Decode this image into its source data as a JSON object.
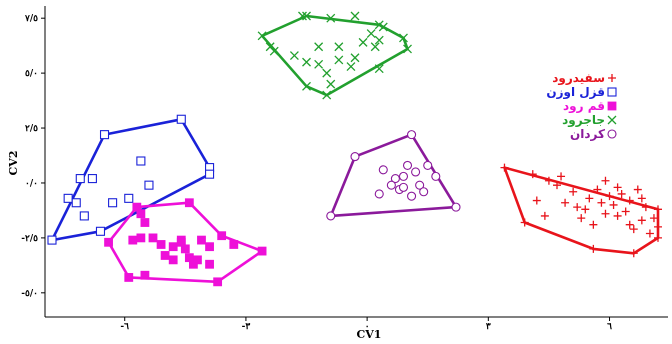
{
  "chart_data": {
    "type": "scatter",
    "xlabel": "CV1",
    "ylabel": "CV2",
    "xlim": [
      -7.8,
      7.2
    ],
    "ylim": [
      -5.6,
      7.6
    ],
    "xticks": [
      {
        "value": -6,
        "label": "-٦"
      },
      {
        "value": -3,
        "label": "-٣"
      },
      {
        "value": 0,
        "label": "٠"
      },
      {
        "value": 3,
        "label": "٣"
      },
      {
        "value": 6,
        "label": "٦"
      }
    ],
    "yticks": [
      {
        "value": 7.5,
        "label": "٧/٥"
      },
      {
        "value": 5,
        "label": "٥/٠"
      },
      {
        "value": 2.5,
        "label": "٢/٥"
      },
      {
        "value": 0,
        "label": "٠/٠"
      },
      {
        "value": -2.5,
        "label": "-٢/٥"
      },
      {
        "value": -5,
        "label": "-٥/٠"
      }
    ],
    "legend_position": "right",
    "series": [
      {
        "name": "سفیدرود",
        "marker": "plus",
        "color": "#e8141b",
        "hull": [
          [
            3.4,
            0.7
          ],
          [
            7.2,
            -1.2
          ],
          [
            7.2,
            -2.5
          ],
          [
            6.6,
            -3.2
          ],
          [
            5.6,
            -3.0
          ],
          [
            3.9,
            -1.8
          ]
        ],
        "points": [
          [
            3.4,
            0.7
          ],
          [
            3.9,
            -1.8
          ],
          [
            4.1,
            0.4
          ],
          [
            4.2,
            -0.8
          ],
          [
            4.4,
            -1.5
          ],
          [
            4.5,
            0.1
          ],
          [
            4.7,
            -0.1
          ],
          [
            4.8,
            0.3
          ],
          [
            4.9,
            -0.9
          ],
          [
            5.1,
            -0.4
          ],
          [
            5.2,
            -1.1
          ],
          [
            5.3,
            -1.6
          ],
          [
            5.5,
            -0.7
          ],
          [
            5.6,
            -1.9
          ],
          [
            5.7,
            -0.3
          ],
          [
            5.8,
            -0.9
          ],
          [
            5.9,
            -1.4
          ],
          [
            5.9,
            0.1
          ],
          [
            6.0,
            -0.6
          ],
          [
            6.1,
            -1.0
          ],
          [
            6.2,
            -0.2
          ],
          [
            6.3,
            -0.5
          ],
          [
            6.4,
            -1.3
          ],
          [
            6.5,
            -0.8
          ],
          [
            6.6,
            -2.1
          ],
          [
            6.7,
            -0.3
          ],
          [
            6.8,
            -1.7
          ],
          [
            6.9,
            -1.1
          ],
          [
            7.0,
            -2.3
          ],
          [
            7.1,
            -1.6
          ],
          [
            7.2,
            -2.0
          ],
          [
            6.5,
            -1.9
          ],
          [
            6.2,
            -1.5
          ],
          [
            5.4,
            -1.2
          ],
          [
            6.8,
            -0.7
          ],
          [
            5.6,
            -3.0
          ],
          [
            6.6,
            -3.2
          ],
          [
            7.2,
            -1.2
          ],
          [
            7.2,
            -2.5
          ]
        ]
      },
      {
        "name": "قزل اوزن",
        "marker": "square-open",
        "color": "#1a22d8",
        "hull": [
          [
            -7.8,
            -2.6
          ],
          [
            -6.5,
            2.2
          ],
          [
            -4.6,
            2.9
          ],
          [
            -3.9,
            0.7
          ],
          [
            -3.9,
            0.4
          ],
          [
            -6.6,
            -2.2
          ]
        ],
        "points": [
          [
            -7.8,
            -2.6
          ],
          [
            -6.5,
            2.2
          ],
          [
            -4.6,
            2.9
          ],
          [
            -3.9,
            0.7
          ],
          [
            -3.9,
            0.4
          ],
          [
            -6.6,
            -2.2
          ],
          [
            -7.1,
            0.2
          ],
          [
            -7.4,
            -0.7
          ],
          [
            -7.2,
            -0.9
          ],
          [
            -6.8,
            0.2
          ],
          [
            -7.0,
            -1.5
          ],
          [
            -6.3,
            -0.9
          ],
          [
            -5.9,
            -0.7
          ],
          [
            -5.6,
            1.0
          ],
          [
            -5.4,
            -0.1
          ]
        ]
      },
      {
        "name": "قم رود",
        "marker": "square-filled",
        "color": "#ee10d8",
        "hull": [
          [
            -5.7,
            -1.1
          ],
          [
            -4.4,
            -0.9
          ],
          [
            -3.6,
            -2.4
          ],
          [
            -2.6,
            -3.1
          ],
          [
            -3.7,
            -4.5
          ],
          [
            -5.9,
            -4.3
          ],
          [
            -6.4,
            -2.7
          ]
        ],
        "points": [
          [
            -5.7,
            -1.1
          ],
          [
            -4.4,
            -0.9
          ],
          [
            -3.6,
            -2.4
          ],
          [
            -2.6,
            -3.1
          ],
          [
            -3.7,
            -4.5
          ],
          [
            -5.9,
            -4.3
          ],
          [
            -6.4,
            -2.7
          ],
          [
            -5.6,
            -1.4
          ],
          [
            -5.5,
            -1.8
          ],
          [
            -5.8,
            -2.6
          ],
          [
            -5.6,
            -2.5
          ],
          [
            -5.3,
            -2.5
          ],
          [
            -5.1,
            -2.8
          ],
          [
            -5.0,
            -3.3
          ],
          [
            -4.8,
            -2.9
          ],
          [
            -4.6,
            -2.6
          ],
          [
            -4.6,
            -2.7
          ],
          [
            -4.5,
            -3.0
          ],
          [
            -4.8,
            -3.5
          ],
          [
            -4.4,
            -3.4
          ],
          [
            -4.2,
            -3.5
          ],
          [
            -4.3,
            -3.7
          ],
          [
            -4.1,
            -2.6
          ],
          [
            -3.9,
            -2.9
          ],
          [
            -3.9,
            -3.7
          ],
          [
            -3.3,
            -2.8
          ],
          [
            -5.5,
            -4.2
          ]
        ]
      },
      {
        "name": "جاجرود",
        "marker": "x",
        "color": "#22a02e",
        "hull": [
          [
            -2.6,
            6.7
          ],
          [
            -1.5,
            7.6
          ],
          [
            0.3,
            7.2
          ],
          [
            0.9,
            6.6
          ],
          [
            1.0,
            6.1
          ],
          [
            -1.0,
            4.0
          ],
          [
            -1.5,
            4.4
          ]
        ],
        "points": [
          [
            -2.6,
            6.7
          ],
          [
            -1.5,
            7.6
          ],
          [
            0.3,
            7.2
          ],
          [
            0.9,
            6.6
          ],
          [
            1.0,
            6.1
          ],
          [
            -1.0,
            4.0
          ],
          [
            -1.5,
            4.4
          ],
          [
            -1.6,
            7.6
          ],
          [
            -0.9,
            7.5
          ],
          [
            -0.3,
            7.6
          ],
          [
            -2.4,
            6.2
          ],
          [
            -2.3,
            6.0
          ],
          [
            -1.8,
            5.8
          ],
          [
            -1.5,
            5.5
          ],
          [
            -1.2,
            6.2
          ],
          [
            -1.2,
            5.4
          ],
          [
            -1.0,
            5.0
          ],
          [
            -0.9,
            4.5
          ],
          [
            -0.7,
            5.6
          ],
          [
            -0.7,
            6.2
          ],
          [
            -0.4,
            5.3
          ],
          [
            -0.3,
            5.7
          ],
          [
            -0.1,
            6.4
          ],
          [
            0.1,
            6.8
          ],
          [
            0.2,
            6.2
          ],
          [
            0.3,
            6.5
          ],
          [
            0.4,
            7.1
          ],
          [
            0.3,
            5.2
          ]
        ]
      },
      {
        "name": "کردان",
        "marker": "circle-open",
        "color": "#8b1a9b",
        "hull": [
          [
            -0.9,
            -1.5
          ],
          [
            -0.3,
            1.2
          ],
          [
            1.1,
            2.2
          ],
          [
            2.2,
            -1.1
          ]
        ],
        "points": [
          [
            -0.9,
            -1.5
          ],
          [
            -0.3,
            1.2
          ],
          [
            1.1,
            2.2
          ],
          [
            2.2,
            -1.1
          ],
          [
            0.4,
            0.6
          ],
          [
            0.7,
            0.2
          ],
          [
            0.9,
            0.3
          ],
          [
            1.0,
            0.8
          ],
          [
            1.2,
            0.5
          ],
          [
            1.5,
            0.8
          ],
          [
            1.7,
            0.3
          ],
          [
            1.3,
            -0.1
          ],
          [
            0.8,
            -0.3
          ],
          [
            0.6,
            -0.1
          ],
          [
            1.1,
            -0.6
          ],
          [
            0.3,
            -0.5
          ],
          [
            1.4,
            -0.4
          ],
          [
            0.9,
            -0.2
          ]
        ]
      }
    ]
  }
}
